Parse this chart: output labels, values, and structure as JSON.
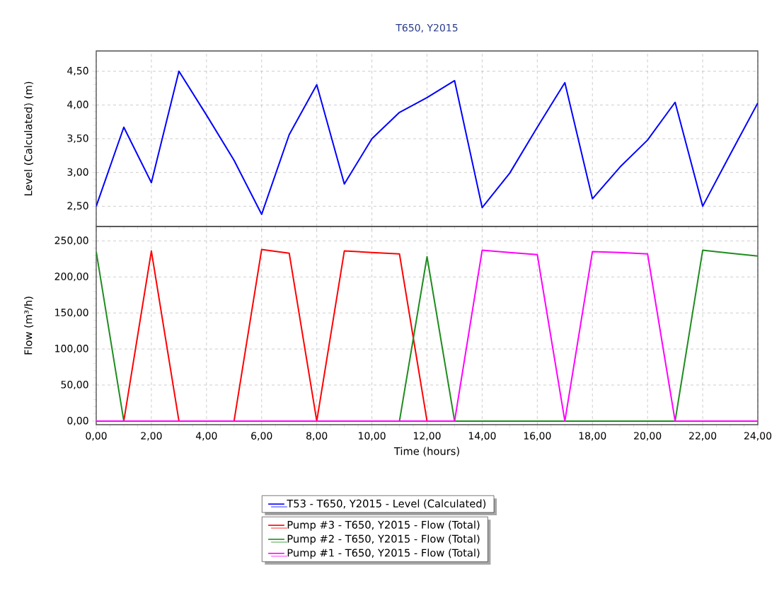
{
  "chart_data": [
    {
      "type": "line",
      "title": "T650, Y2015",
      "ylabel": "Level (Calculated) (m)",
      "x": [
        0,
        1,
        2,
        3,
        4,
        5,
        6,
        7,
        8,
        9,
        10,
        11,
        12,
        13,
        14,
        15,
        16,
        17,
        18,
        19,
        20,
        21,
        22,
        23,
        24
      ],
      "series": [
        {
          "name": "T53 - T650, Y2015 - Level (Calculated)",
          "color": "#0000ff",
          "values": [
            2.5,
            3.67,
            2.85,
            4.5,
            3.85,
            3.18,
            2.38,
            3.56,
            4.3,
            2.83,
            3.5,
            3.89,
            4.11,
            4.36,
            2.48,
            2.99,
            3.67,
            4.33,
            2.61,
            3.08,
            3.48,
            4.04,
            2.5,
            3.27,
            4.03
          ]
        }
      ],
      "xlim": [
        0,
        24
      ],
      "ylim": [
        2.2,
        4.8
      ],
      "xticks": [
        {
          "value": 0,
          "label": null
        },
        {
          "value": 2,
          "label": null
        },
        {
          "value": 4,
          "label": null
        },
        {
          "value": 6,
          "label": null
        },
        {
          "value": 8,
          "label": null
        },
        {
          "value": 10,
          "label": null
        },
        {
          "value": 12,
          "label": null
        },
        {
          "value": 14,
          "label": null
        },
        {
          "value": 16,
          "label": null
        },
        {
          "value": 18,
          "label": null
        },
        {
          "value": 20,
          "label": null
        },
        {
          "value": 22,
          "label": null
        },
        {
          "value": 24,
          "label": null
        }
      ],
      "yticks": [
        {
          "value": 2.5,
          "label": "2,50"
        },
        {
          "value": 3,
          "label": "3,00"
        },
        {
          "value": 3.5,
          "label": "3,50"
        },
        {
          "value": 4,
          "label": "4,00"
        },
        {
          "value": 4.5,
          "label": "4,50"
        }
      ],
      "tick_labels": "y",
      "grid": true,
      "legend": "bottom"
    },
    {
      "type": "line",
      "xlabel": "Time (hours)",
      "ylabel": "Flow (m³/h)",
      "x": [
        0,
        1,
        2,
        3,
        4,
        5,
        6,
        7,
        8,
        9,
        10,
        11,
        12,
        13,
        14,
        15,
        16,
        17,
        18,
        19,
        20,
        21,
        22,
        23,
        24
      ],
      "series": [
        {
          "name": "Pump #3 - T650, Y2015 - Flow (Total)",
          "color": "#ff0000",
          "values": [
            null,
            0,
            236,
            0,
            null,
            0,
            238,
            233,
            0,
            236,
            234,
            232,
            0,
            null,
            null,
            null,
            null,
            null,
            null,
            null,
            null,
            null,
            null,
            null,
            null
          ]
        },
        {
          "name": "Pump #2 - T650, Y2015 - Flow (Total)",
          "color": "#1e8c1e",
          "values": [
            235,
            0,
            0,
            0,
            0,
            0,
            0,
            0,
            0,
            0,
            0,
            0,
            228,
            0,
            0,
            0,
            0,
            0,
            0,
            0,
            0,
            0,
            237,
            233,
            229
          ]
        },
        {
          "name": "Pump #1 - T650, Y2015 - Flow (Total)",
          "color": "#ff00ff",
          "values": [
            0,
            0,
            0,
            0,
            0,
            0,
            0,
            0,
            0,
            0,
            0,
            0,
            0,
            0,
            237,
            234,
            231,
            0,
            235,
            234,
            232,
            0,
            0,
            0,
            0
          ]
        }
      ],
      "xlim": [
        0,
        24
      ],
      "ylim": [
        -5,
        270
      ],
      "xticks": [
        {
          "value": 0,
          "label": "0,00"
        },
        {
          "value": 2,
          "label": "2,00"
        },
        {
          "value": 4,
          "label": "4,00"
        },
        {
          "value": 6,
          "label": "6,00"
        },
        {
          "value": 8,
          "label": "8,00"
        },
        {
          "value": 10,
          "label": "10,00"
        },
        {
          "value": 12,
          "label": "12,00"
        },
        {
          "value": 14,
          "label": "14,00"
        },
        {
          "value": 16,
          "label": "16,00"
        },
        {
          "value": 18,
          "label": "18,00"
        },
        {
          "value": 20,
          "label": "20,00"
        },
        {
          "value": 22,
          "label": "22,00"
        },
        {
          "value": 24,
          "label": "24,00"
        }
      ],
      "yticks": [
        {
          "value": 0,
          "label": "0,00"
        },
        {
          "value": 50,
          "label": "50,00"
        },
        {
          "value": 100,
          "label": "100,00"
        },
        {
          "value": 150,
          "label": "150,00"
        },
        {
          "value": 200,
          "label": "200,00"
        },
        {
          "value": 250,
          "label": "250,00"
        }
      ],
      "grid": true,
      "legend": "bottom"
    }
  ]
}
